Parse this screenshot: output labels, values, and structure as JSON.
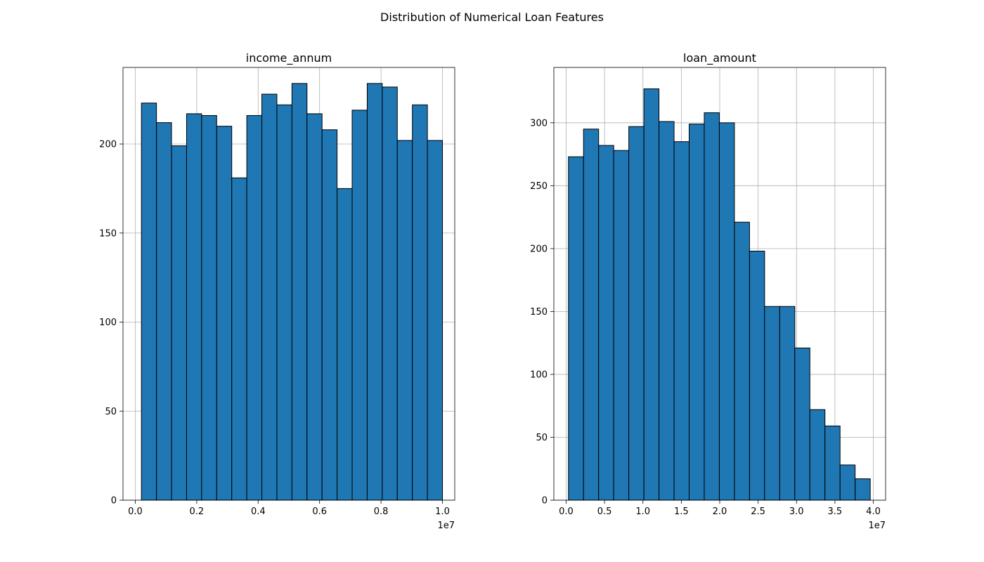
{
  "figure": {
    "suptitle": "Distribution of Numerical Loan Features",
    "bar_color": "#1f77b4",
    "bar_edge_color": "#000000",
    "grid": true
  },
  "chart_data": [
    {
      "type": "bar",
      "title": "income_annum",
      "xlabel": "",
      "ylabel": "",
      "offset_label": "1e7",
      "xlim": [
        -0.04,
        1.04
      ],
      "ylim": [
        0,
        243
      ],
      "x_ticks": [
        0.0,
        0.2,
        0.4,
        0.6,
        0.8,
        1.0
      ],
      "x_tick_labels": [
        "0.0",
        "0.2",
        "0.4",
        "0.6",
        "0.8",
        "1.0"
      ],
      "y_ticks": [
        0,
        50,
        100,
        150,
        200
      ],
      "y_tick_labels": [
        "0",
        "50",
        "100",
        "150",
        "200"
      ],
      "bin_edges": [
        0.02,
        0.069,
        0.118,
        0.167,
        0.216,
        0.265,
        0.314,
        0.363,
        0.412,
        0.461,
        0.51,
        0.559,
        0.608,
        0.657,
        0.706,
        0.755,
        0.804,
        0.853,
        0.902,
        0.951,
        1.0
      ],
      "values": [
        223,
        212,
        199,
        217,
        216,
        210,
        181,
        216,
        228,
        222,
        234,
        217,
        208,
        175,
        219,
        234,
        232,
        202,
        222,
        202
      ]
    },
    {
      "type": "bar",
      "title": "loan_amount",
      "xlabel": "",
      "ylabel": "",
      "offset_label": "1e7",
      "xlim": [
        -0.16,
        4.16
      ],
      "ylim": [
        0,
        344
      ],
      "x_ticks": [
        0.0,
        0.5,
        1.0,
        1.5,
        2.0,
        2.5,
        3.0,
        3.5,
        4.0
      ],
      "x_tick_labels": [
        "0.0",
        "0.5",
        "1.0",
        "1.5",
        "2.0",
        "2.5",
        "3.0",
        "3.5",
        "4.0"
      ],
      "y_ticks": [
        0,
        50,
        100,
        150,
        200,
        250,
        300
      ],
      "y_tick_labels": [
        "0",
        "50",
        "100",
        "150",
        "200",
        "250",
        "300"
      ],
      "bin_edges": [
        0.03,
        0.2265,
        0.423,
        0.6195,
        0.816,
        1.0125,
        1.209,
        1.4055,
        1.602,
        1.7985,
        1.995,
        2.1915,
        2.388,
        2.5845,
        2.781,
        2.9775,
        3.174,
        3.3705,
        3.567,
        3.7635,
        3.96
      ],
      "values": [
        273,
        295,
        282,
        278,
        297,
        327,
        301,
        285,
        299,
        308,
        300,
        221,
        198,
        154,
        154,
        121,
        72,
        59,
        28,
        17
      ]
    }
  ]
}
